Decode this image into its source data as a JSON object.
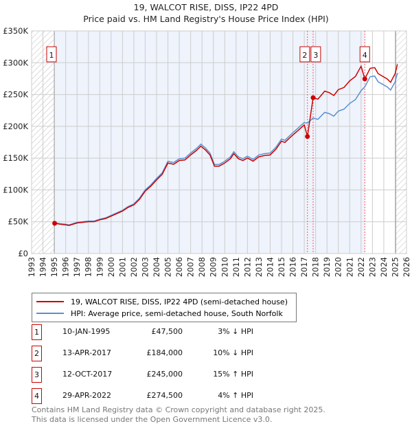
{
  "chart_data": {
    "type": "line",
    "title": "19, WALCOT RISE, DISS, IP22 4PD",
    "subtitle": "Price paid vs. HM Land Registry's House Price Index (HPI)",
    "xlim": [
      1993,
      2026
    ],
    "ylim": [
      0,
      350000
    ],
    "y_ticks": [
      {
        "v": 0,
        "label": "£0"
      },
      {
        "v": 50000,
        "label": "£50K"
      },
      {
        "v": 100000,
        "label": "£100K"
      },
      {
        "v": 150000,
        "label": "£150K"
      },
      {
        "v": 200000,
        "label": "£200K"
      },
      {
        "v": 250000,
        "label": "£250K"
      },
      {
        "v": 300000,
        "label": "£300K"
      },
      {
        "v": 350000,
        "label": "£350K"
      }
    ],
    "x_ticks": [
      "1993",
      "1994",
      "1995",
      "1996",
      "1997",
      "1998",
      "1999",
      "2000",
      "2001",
      "2002",
      "2003",
      "2004",
      "2005",
      "2006",
      "2007",
      "2008",
      "2009",
      "2010",
      "2011",
      "2012",
      "2013",
      "2014",
      "2015",
      "2016",
      "2017",
      "2018",
      "2019",
      "2020",
      "2021",
      "2022",
      "2023",
      "2024",
      "2025",
      "2026"
    ],
    "grid": true,
    "colors": {
      "price": "#cc0000",
      "hpi": "#5b8fd0",
      "shade": "#eef3fc"
    },
    "hpi_series": {
      "name": "HPI: Average price, semi-detached house, South Norfolk",
      "x": [
        1995.0,
        1995.5,
        1996.0,
        1996.3,
        1997,
        1998,
        1998.5,
        1999,
        1999.5,
        2000,
        2001,
        2001.5,
        2002,
        2002.5,
        2003,
        2003.5,
        2004,
        2004.5,
        2005,
        2005.5,
        2006,
        2006.5,
        2007,
        2007.5,
        2007.9,
        2008.3,
        2008.7,
        2009.1,
        2009.5,
        2010,
        2010.5,
        2010.8,
        2011.2,
        2011.6,
        2012,
        2012.5,
        2013,
        2013.5,
        2014,
        2014.5,
        2015,
        2015.3,
        2015.7,
        2016,
        2016.5,
        2017,
        2017.28,
        2017.78,
        2018.2,
        2018.8,
        2019.2,
        2019.6,
        2020,
        2020.5,
        2021,
        2021.5,
        2022,
        2022.33,
        2022.8,
        2023.2,
        2023.5,
        2024,
        2024.3,
        2024.6,
        2025,
        2025.2
      ],
      "y": [
        48500,
        47000,
        46000,
        45000,
        49000,
        51000,
        51000,
        54000,
        56000,
        60000,
        68000,
        74000,
        78000,
        87000,
        100000,
        108000,
        118000,
        127000,
        145000,
        143000,
        149000,
        150000,
        158000,
        165000,
        172000,
        166000,
        158000,
        140000,
        140000,
        145000,
        152000,
        160000,
        152000,
        149000,
        153000,
        148000,
        155000,
        157000,
        158000,
        167000,
        180000,
        178000,
        185000,
        190000,
        198000,
        206000,
        205000,
        213000,
        211000,
        222000,
        220000,
        216000,
        224000,
        227000,
        236000,
        242000,
        256000,
        262000,
        278000,
        279000,
        270000,
        265000,
        262000,
        257000,
        270000,
        284000
      ]
    },
    "price_series": {
      "name": "19, WALCOT RISE, DISS, IP22 4PD (semi-detached house)"
    },
    "sales": [
      {
        "id": "1",
        "x": 1995.03,
        "date": "10-JAN-1995",
        "price": 47500,
        "price_label": "£47,500",
        "hpi_diff": "3% ↓ HPI"
      },
      {
        "id": "2",
        "x": 2017.28,
        "date": "13-APR-2017",
        "price": 184000,
        "price_label": "£184,000",
        "hpi_diff": "10% ↓ HPI"
      },
      {
        "id": "3",
        "x": 2017.78,
        "date": "12-OCT-2017",
        "price": 245000,
        "price_label": "£245,000",
        "hpi_diff": "15% ↑ HPI"
      },
      {
        "id": "4",
        "x": 2022.33,
        "date": "29-APR-2022",
        "price": 274500,
        "price_label": "£274,500",
        "hpi_diff": "4% ↑ HPI"
      }
    ]
  },
  "legend": {
    "price": "19, WALCOT RISE, DISS, IP22 4PD (semi-detached house)",
    "hpi": "HPI: Average price, semi-detached house, South Norfolk"
  },
  "footer": {
    "line1": "Contains HM Land Registry data © Crown copyright and database right 2025.",
    "line2": "This data is licensed under the Open Government Licence v3.0."
  }
}
